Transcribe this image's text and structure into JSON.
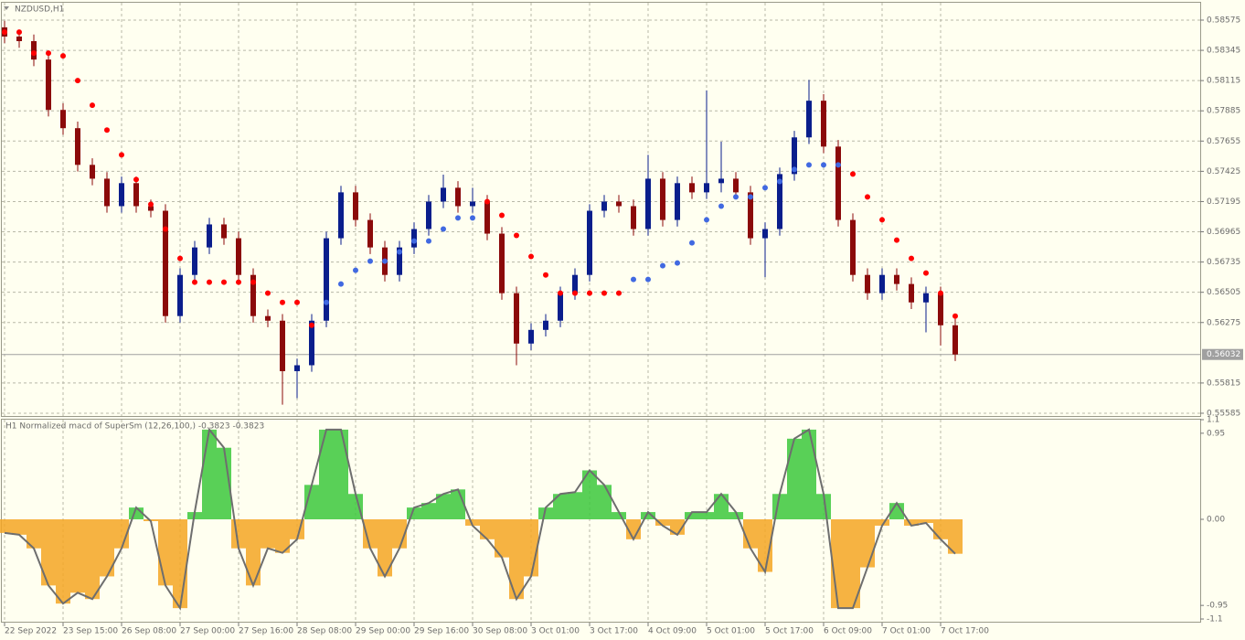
{
  "chart_data": [
    {
      "type": "candlestick",
      "title": "NZDUSD,H1",
      "bull_color": "#0a1e8c",
      "bear_color": "#8b0a0a",
      "open": [
        0.5852,
        0.5845,
        0.58415,
        0.58275,
        0.57892,
        0.57753,
        0.57474,
        0.57369,
        0.5716,
        0.57335,
        0.5716,
        0.57125,
        0.56324,
        0.56637,
        0.56846,
        0.57021,
        0.56916,
        0.56637,
        0.56324,
        0.56289,
        0.55905,
        0.5595,
        0.56289,
        0.56916,
        0.57265,
        0.57055,
        0.56846,
        0.56637,
        0.56846,
        0.56986,
        0.57195,
        0.573,
        0.5716,
        0.57195,
        0.56951,
        0.56498,
        0.56115,
        0.56219,
        0.56289,
        0.56498,
        0.56637,
        0.57125,
        0.57195,
        0.5716,
        0.56986,
        0.57369,
        0.57055,
        0.57335,
        0.57265,
        0.57335,
        0.57369,
        0.57265,
        0.56916,
        0.56986,
        0.57404,
        0.57683,
        0.57962,
        0.57613,
        0.57055,
        0.56637,
        0.56498,
        0.56637,
        0.56568,
        0.56428,
        0.56498,
        0.56254
      ],
      "high": [
        0.5857,
        0.585,
        0.58465,
        0.58325,
        0.57942,
        0.57803,
        0.57524,
        0.57419,
        0.57385,
        0.57385,
        0.5721,
        0.57175,
        0.56687,
        0.56896,
        0.57071,
        0.57071,
        0.56966,
        0.56687,
        0.56374,
        0.56339,
        0.56,
        0.56339,
        0.56966,
        0.57315,
        0.57315,
        0.57105,
        0.56896,
        0.56896,
        0.57036,
        0.57245,
        0.574,
        0.5735,
        0.573,
        0.57245,
        0.57001,
        0.56548,
        0.56269,
        0.56339,
        0.56548,
        0.56687,
        0.57175,
        0.57245,
        0.57245,
        0.5721,
        0.5755,
        0.57419,
        0.57385,
        0.57385,
        0.5804,
        0.5765,
        0.57419,
        0.57315,
        0.57036,
        0.57454,
        0.57733,
        0.5812,
        0.58012,
        0.57663,
        0.57105,
        0.56687,
        0.56687,
        0.56687,
        0.56618,
        0.56548,
        0.56548,
        0.56304
      ],
      "low": [
        0.584,
        0.58365,
        0.58225,
        0.57842,
        0.57703,
        0.57424,
        0.57319,
        0.5711,
        0.5711,
        0.5711,
        0.57075,
        0.56274,
        0.56274,
        0.56587,
        0.56796,
        0.56866,
        0.56587,
        0.56274,
        0.56239,
        0.5565,
        0.557,
        0.559,
        0.56239,
        0.56866,
        0.57005,
        0.56796,
        0.56587,
        0.56587,
        0.56796,
        0.56936,
        0.57145,
        0.5711,
        0.5711,
        0.56901,
        0.56448,
        0.5595,
        0.56065,
        0.56169,
        0.56239,
        0.56448,
        0.56587,
        0.57075,
        0.5711,
        0.56936,
        0.56936,
        0.57005,
        0.57005,
        0.57215,
        0.57215,
        0.57265,
        0.57215,
        0.56866,
        0.5662,
        0.56936,
        0.57354,
        0.57633,
        0.57563,
        0.57005,
        0.56587,
        0.56448,
        0.56448,
        0.56518,
        0.56378,
        0.562,
        0.561,
        0.55982
      ],
      "close": [
        0.5845,
        0.58415,
        0.58275,
        0.57892,
        0.57753,
        0.57474,
        0.57369,
        0.5716,
        0.57335,
        0.5716,
        0.57125,
        0.56324,
        0.56637,
        0.56846,
        0.57021,
        0.56916,
        0.56637,
        0.56324,
        0.56289,
        0.55905,
        0.5595,
        0.56289,
        0.56916,
        0.57265,
        0.57055,
        0.56846,
        0.56637,
        0.56846,
        0.56986,
        0.57195,
        0.573,
        0.5716,
        0.57195,
        0.56951,
        0.56498,
        0.56115,
        0.56219,
        0.56289,
        0.56498,
        0.56637,
        0.57125,
        0.57195,
        0.5716,
        0.56986,
        0.57369,
        0.57055,
        0.57335,
        0.57265,
        0.57335,
        0.57369,
        0.57265,
        0.56916,
        0.56986,
        0.57404,
        0.57683,
        0.57962,
        0.57613,
        0.57055,
        0.56637,
        0.56498,
        0.56637,
        0.56568,
        0.56428,
        0.56498,
        0.56254,
        0.56032
      ],
      "series": [
        {
          "color": "#ff0000",
          "values": [
            0.58484,
            0.58484,
            0.58324,
            0.58324,
            0.58303,
            0.58115,
            0.57927,
            0.57739,
            0.5755,
            0.57362,
            0.57174,
            0.56986,
            0.56763,
            0.56582,
            0.56582,
            0.56582,
            0.56582,
            0.56582,
            0.56498,
            0.56428,
            0.56428,
            0.56254,
            null,
            null,
            null,
            null,
            null,
            null,
            null,
            null,
            null,
            null,
            null,
            0.57195,
            0.5709,
            0.56937,
            0.56777,
            0.56637,
            0.56498,
            0.56498,
            0.56498,
            0.56498,
            0.56498,
            null,
            null,
            null,
            null,
            null,
            null,
            null,
            null,
            null,
            null,
            null,
            null,
            null,
            null,
            null,
            0.57404,
            0.5723,
            0.57056,
            0.56902,
            0.56763,
            0.56651,
            0.56498,
            0.56324
          ]
        },
        {
          "color": "#4169e1",
          "values": [
            null,
            null,
            null,
            null,
            null,
            null,
            null,
            null,
            null,
            null,
            null,
            null,
            null,
            null,
            null,
            null,
            null,
            null,
            null,
            null,
            null,
            null,
            0.56428,
            0.56568,
            0.56672,
            0.56742,
            0.56742,
            0.56812,
            0.56895,
            0.56895,
            0.56986,
            0.5707,
            0.5707,
            null,
            null,
            null,
            null,
            null,
            null,
            null,
            null,
            null,
            null,
            0.56603,
            0.56603,
            0.56707,
            0.56728,
            0.56881,
            0.57056,
            0.5716,
            0.5723,
            0.5723,
            0.573,
            0.57348,
            0.57439,
            0.57474,
            0.57474,
            0.57474,
            null,
            null,
            null,
            null,
            null,
            null,
            null,
            null
          ]
        }
      ],
      "current_price": 0.56032,
      "ylim": [
        0.55564,
        0.58714
      ],
      "yticks": [
        0.58575,
        0.58345,
        0.58115,
        0.57885,
        0.57655,
        0.57425,
        0.57195,
        0.56965,
        0.56735,
        0.56505,
        0.56275,
        0.55815,
        0.55585
      ],
      "xticks": [
        {
          "value": 0,
          "label": "22 Sep 2022"
        },
        {
          "value": 4,
          "label": "23 Sep 15:00"
        },
        {
          "value": 8,
          "label": "26 Sep 08:00"
        },
        {
          "value": 12,
          "label": "27 Sep 00:00"
        },
        {
          "value": 16,
          "label": "27 Sep 16:00"
        },
        {
          "value": 20,
          "label": "28 Sep 08:00"
        },
        {
          "value": 24,
          "label": "29 Sep 00:00"
        },
        {
          "value": 28,
          "label": "29 Sep 16:00"
        },
        {
          "value": 32,
          "label": "30 Sep 08:00"
        },
        {
          "value": 36,
          "label": "3 Oct 01:00"
        },
        {
          "value": 40,
          "label": "3 Oct 17:00"
        },
        {
          "value": 44,
          "label": "4 Oct 09:00"
        },
        {
          "value": 48,
          "label": "5 Oct 01:00"
        },
        {
          "value": 52,
          "label": "5 Oct 17:00"
        },
        {
          "value": 56,
          "label": "6 Oct 09:00"
        },
        {
          "value": 60,
          "label": "7 Oct 01:00"
        },
        {
          "value": 64,
          "label": "7 Oct 17:00"
        }
      ],
      "grid": true
    },
    {
      "type": "histogram",
      "title": "H1 Normalized macd of SuperSm (12,26,100,) -0.3823 -0.3823",
      "positive_color": "#3cc83c",
      "negative_color": "#f5a623",
      "line_color": "#6e6e6e",
      "values": [
        -0.15,
        -0.17,
        -0.32,
        -0.73,
        -0.93,
        -0.81,
        -0.88,
        -0.63,
        -0.32,
        0.13,
        -0.02,
        -0.73,
        -0.98,
        0.08,
        0.99,
        0.79,
        -0.32,
        -0.73,
        -0.32,
        -0.37,
        -0.22,
        0.38,
        0.99,
        0.99,
        0.28,
        -0.32,
        -0.63,
        -0.32,
        0.13,
        0.18,
        0.28,
        0.33,
        -0.07,
        -0.22,
        -0.42,
        -0.88,
        -0.63,
        0.13,
        0.28,
        0.3,
        0.54,
        0.38,
        0.08,
        -0.22,
        0.08,
        -0.07,
        -0.17,
        0.08,
        0.08,
        0.28,
        0.08,
        -0.32,
        -0.58,
        0.28,
        0.89,
        0.99,
        0.28,
        -0.98,
        -0.98,
        -0.53,
        -0.07,
        0.18,
        -0.07,
        -0.04,
        -0.22,
        -0.38
      ],
      "ylim": [
        -1.13,
        1.11
      ],
      "yticks": [
        1.1,
        0.95,
        {
          "value": 0,
          "label": "0.00"
        },
        -0.95,
        -1.1
      ]
    }
  ]
}
